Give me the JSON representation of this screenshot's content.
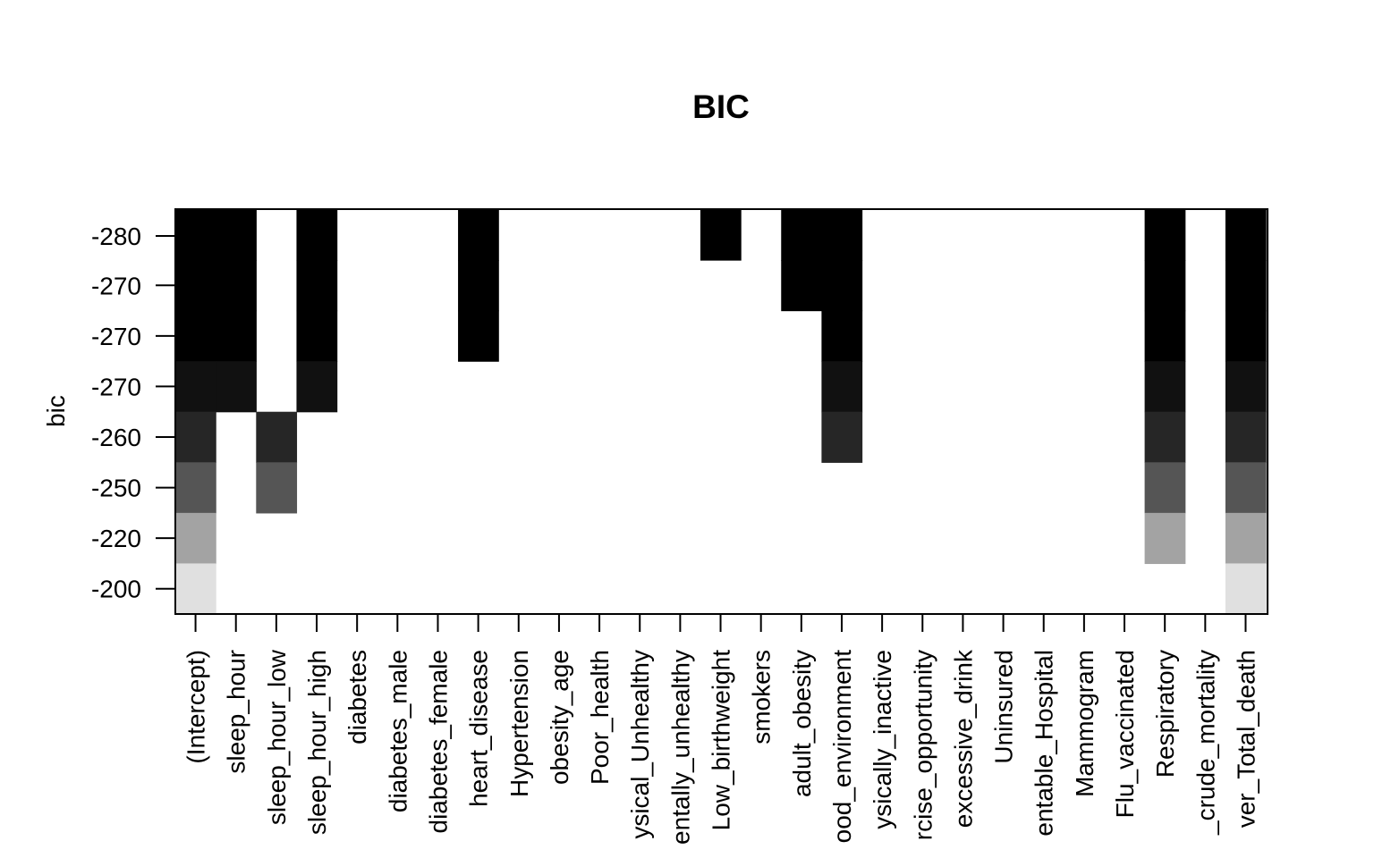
{
  "chart_data": {
    "type": "heatmap",
    "title": "BIC",
    "ylabel": "bic",
    "xlabel": "",
    "variables": [
      "(Intercept)",
      "sleep_hour",
      "sleep_hour_low",
      "sleep_hour_high",
      "diabetes",
      "diabetes_male",
      "diabetes_female",
      "heart_disease",
      "Hypertension",
      "obesity_age",
      "Poor_health",
      "Physical_Unhealthy",
      "Mentally_unhealthy",
      "Low_birthweight",
      "smokers",
      "adult_obesity",
      "Food_environment",
      "Physically_inactive",
      "Exercise_opportunity",
      "excessive_drink",
      "Uninsured",
      "Preventable_Hospital",
      "Mammogram",
      "Flu_vaccinated",
      "Respiratory",
      "crude_mortality",
      "Liver_Total_death"
    ],
    "x_tick_labels": [
      "(Intercept)",
      "sleep_hour",
      "sleep_hour_low",
      "sleep_hour_high",
      "diabetes",
      "diabetes_male",
      "diabetes_female",
      "heart_disease",
      "Hypertension",
      "obesity_age",
      "Poor_health",
      "ysical_Unhealthy",
      "entally_unhealthy",
      "Low_birthweight",
      "smokers",
      "adult_obesity",
      "ood_environment",
      "ysically_inactive",
      "rcise_opportunity",
      "excessive_drink",
      "Uninsured",
      "entable_Hospital",
      "Mammogram",
      "Flu_vaccinated",
      "Respiratory",
      "_crude_mortality",
      "ver_Total_death"
    ],
    "y_tick_labels": [
      "-280",
      "-270",
      "-270",
      "-270",
      "-260",
      "-250",
      "-220",
      "-200"
    ],
    "rows": [
      {
        "bic": "-280",
        "shade": "#000000",
        "included": [
          1,
          1,
          0,
          1,
          0,
          0,
          0,
          1,
          0,
          0,
          0,
          0,
          0,
          1,
          0,
          1,
          1,
          0,
          0,
          0,
          0,
          0,
          0,
          0,
          1,
          0,
          1
        ]
      },
      {
        "bic": "-270",
        "shade": "#000000",
        "included": [
          1,
          1,
          0,
          1,
          0,
          0,
          0,
          1,
          0,
          0,
          0,
          0,
          0,
          0,
          0,
          1,
          1,
          0,
          0,
          0,
          0,
          0,
          0,
          0,
          1,
          0,
          1
        ]
      },
      {
        "bic": "-270",
        "shade": "#000000",
        "included": [
          1,
          1,
          0,
          1,
          0,
          0,
          0,
          1,
          0,
          0,
          0,
          0,
          0,
          0,
          0,
          0,
          1,
          0,
          0,
          0,
          0,
          0,
          0,
          0,
          1,
          0,
          1
        ]
      },
      {
        "bic": "-270",
        "shade": "#111111",
        "included": [
          1,
          1,
          0,
          1,
          0,
          0,
          0,
          0,
          0,
          0,
          0,
          0,
          0,
          0,
          0,
          0,
          1,
          0,
          0,
          0,
          0,
          0,
          0,
          0,
          1,
          0,
          1
        ]
      },
      {
        "bic": "-260",
        "shade": "#262626",
        "included": [
          1,
          0,
          1,
          0,
          0,
          0,
          0,
          0,
          0,
          0,
          0,
          0,
          0,
          0,
          0,
          0,
          1,
          0,
          0,
          0,
          0,
          0,
          0,
          0,
          1,
          0,
          1
        ]
      },
      {
        "bic": "-250",
        "shade": "#555555",
        "included": [
          1,
          0,
          1,
          0,
          0,
          0,
          0,
          0,
          0,
          0,
          0,
          0,
          0,
          0,
          0,
          0,
          0,
          0,
          0,
          0,
          0,
          0,
          0,
          0,
          1,
          0,
          1
        ]
      },
      {
        "bic": "-220",
        "shade": "#a3a3a3",
        "included": [
          1,
          0,
          0,
          0,
          0,
          0,
          0,
          0,
          0,
          0,
          0,
          0,
          0,
          0,
          0,
          0,
          0,
          0,
          0,
          0,
          0,
          0,
          0,
          0,
          1,
          0,
          1
        ]
      },
      {
        "bic": "-200",
        "shade": "#e0e0e0",
        "included": [
          1,
          0,
          0,
          0,
          0,
          0,
          0,
          0,
          0,
          0,
          0,
          0,
          0,
          0,
          0,
          0,
          0,
          0,
          0,
          0,
          0,
          0,
          0,
          0,
          0,
          0,
          1
        ]
      }
    ],
    "grid": false,
    "legend": "none"
  }
}
